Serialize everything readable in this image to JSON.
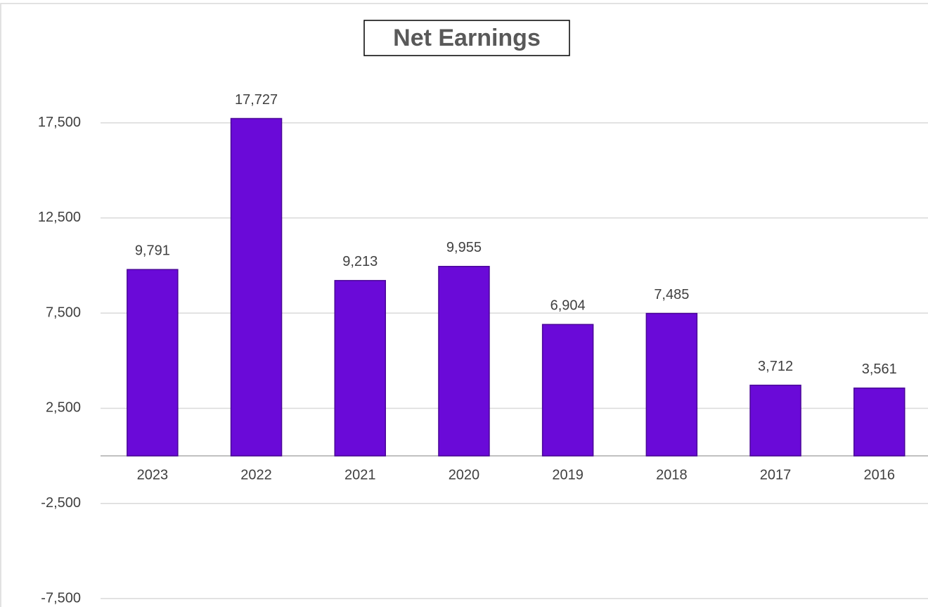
{
  "chart_data": {
    "type": "bar",
    "title": "Net Earnings",
    "categories": [
      "2023",
      "2022",
      "2021",
      "2020",
      "2019",
      "2018",
      "2017",
      "2016"
    ],
    "values": [
      9791,
      17727,
      9213,
      9955,
      6904,
      7485,
      3712,
      3561
    ],
    "value_labels": [
      "9,791",
      "17,727",
      "9,213",
      "9,955",
      "6,904",
      "7,485",
      "3,712",
      "3,561"
    ],
    "color": "#6a0ad8",
    "ylim": [
      -7500,
      20000
    ],
    "yticks": [
      {
        "value": -7500,
        "label": "-7,500"
      },
      {
        "value": -2500,
        "label": "-2,500"
      },
      {
        "value": 2500,
        "label": "2,500"
      },
      {
        "value": 7500,
        "label": "7,500"
      },
      {
        "value": 12500,
        "label": "12,500"
      },
      {
        "value": 17500,
        "label": "17,500"
      }
    ],
    "grid": true
  }
}
